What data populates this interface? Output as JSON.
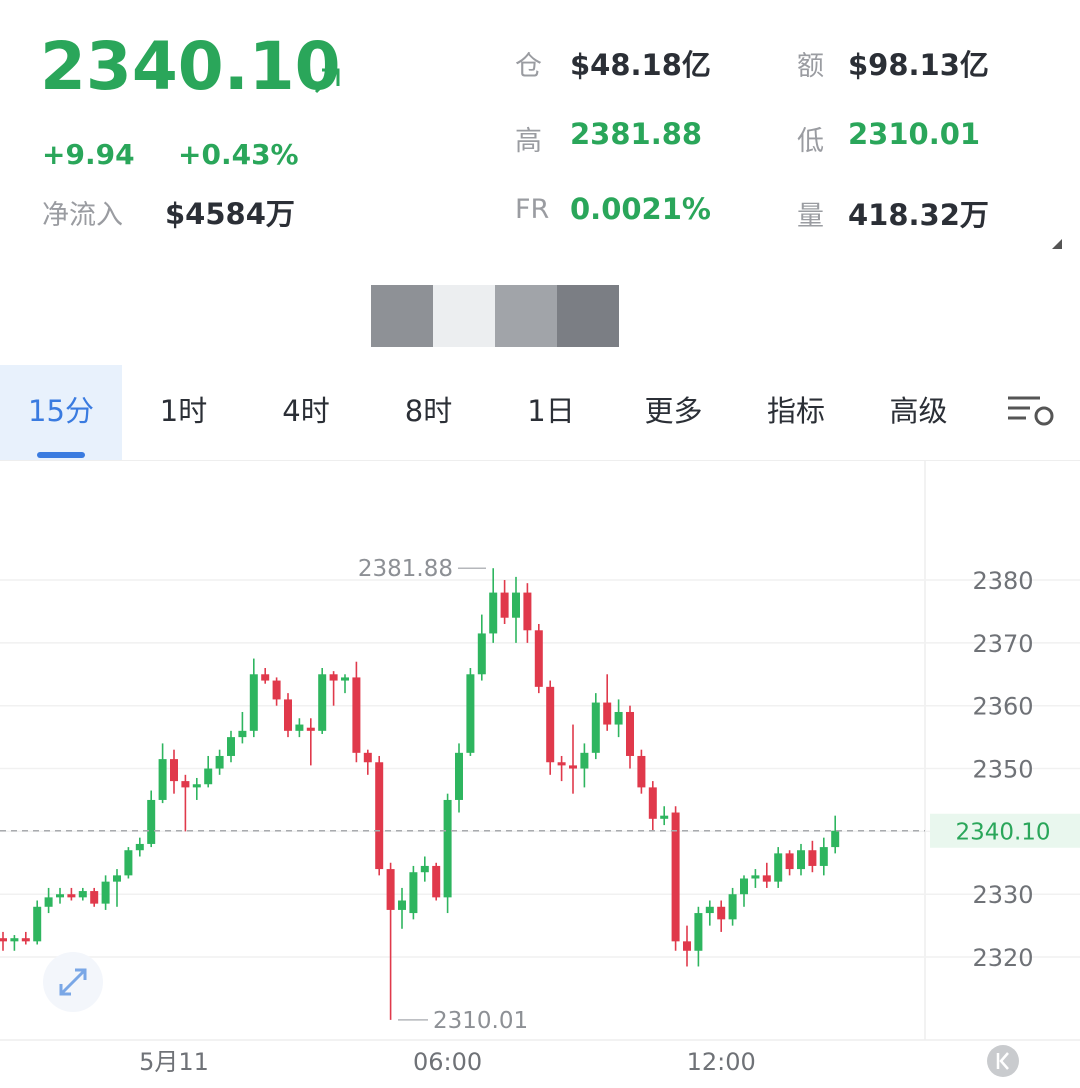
{
  "header": {
    "price": "2340.10",
    "change": "+9.94",
    "change_pct": "+0.43%",
    "inflow_label": "净流入",
    "inflow_value": "$4584万",
    "stats": [
      {
        "label": "仓",
        "value": "$48.18亿"
      },
      {
        "label": "额",
        "value": "$98.13亿"
      },
      {
        "label": "高",
        "value": "2381.88"
      },
      {
        "label": "低",
        "value": "2310.01"
      },
      {
        "label": "FR",
        "value": "0.0021%"
      },
      {
        "label": "量",
        "value": "418.32万"
      }
    ]
  },
  "tabs": [
    "15分",
    "1时",
    "4时",
    "8时",
    "1日",
    "更多",
    "指标",
    "高级"
  ],
  "chart_data": {
    "type": "candlestick",
    "up_color": "#2eb55f",
    "down_color": "#e0394b",
    "grid": true,
    "categories": [
      null,
      null,
      null,
      null,
      null,
      null,
      null,
      null,
      null,
      null,
      null,
      null,
      null,
      null,
      null,
      "5月11",
      null,
      null,
      null,
      null,
      null,
      null,
      null,
      null,
      null,
      null,
      null,
      null,
      null,
      null,
      null,
      null,
      null,
      null,
      null,
      null,
      null,
      null,
      null,
      "06:00",
      null,
      null,
      null,
      null,
      null,
      null,
      null,
      null,
      null,
      null,
      null,
      null,
      null,
      null,
      null,
      null,
      null,
      null,
      null,
      null,
      null,
      null,
      null,
      "12:00",
      null,
      null,
      null,
      null,
      null,
      null,
      null,
      null,
      null,
      null
    ],
    "open": [
      2323,
      2322.5,
      2323,
      2322.5,
      2328,
      2329.5,
      2330,
      2329.5,
      2330.5,
      2328.5,
      2332,
      2333,
      2337,
      2338,
      2345,
      2351.5,
      2348,
      2347,
      2347.5,
      2350,
      2352,
      2355,
      2356,
      2365,
      2364,
      2361,
      2356,
      2356.5,
      2356,
      2365,
      2364,
      2364.5,
      2352.5,
      2351,
      2334,
      2327.5,
      2327,
      2333.5,
      2334.5,
      2329.5,
      2345,
      2352.5,
      2365,
      2371.5,
      2378,
      2374,
      2378,
      2372,
      2363,
      2351,
      2350.5,
      2350,
      2352.5,
      2360.5,
      2357,
      2359,
      2352,
      2347,
      2342,
      2343,
      2322.5,
      2321,
      2327,
      2328,
      2326,
      2330,
      2332.5,
      2333,
      2332,
      2336.5,
      2334,
      2337,
      2334.5,
      2337.5
    ],
    "high": [
      2324,
      2323.5,
      2324,
      2329,
      2331,
      2331,
      2331,
      2331,
      2331,
      2333,
      2334,
      2337.5,
      2339,
      2346.5,
      2354,
      2353,
      2349,
      2348.5,
      2352,
      2353,
      2356,
      2359,
      2367.5,
      2366,
      2364.5,
      2362,
      2358,
      2358,
      2366,
      2365.5,
      2365,
      2367,
      2353,
      2352,
      2335,
      2331,
      2334.5,
      2336,
      2335,
      2346,
      2354,
      2366,
      2374.5,
      2381.88,
      2380,
      2380.5,
      2379.5,
      2373,
      2364,
      2352,
      2357,
      2354,
      2362,
      2365,
      2361,
      2360,
      2353,
      2348,
      2344,
      2344,
      2325,
      2328,
      2329,
      2329,
      2331,
      2333,
      2334,
      2335,
      2337.5,
      2337,
      2338,
      2338.5,
      2339,
      2342.5
    ],
    "low": [
      2321,
      2321,
      2322,
      2322,
      2327,
      2328.5,
      2329,
      2329,
      2328,
      2327.5,
      2328,
      2332.5,
      2336,
      2337.5,
      2344.5,
      2346,
      2340,
      2345,
      2347,
      2349,
      2351,
      2354,
      2355,
      2363.5,
      2360,
      2355,
      2355,
      2350.5,
      2355.5,
      2360,
      2362,
      2351,
      2349,
      2333,
      2310.01,
      2324.5,
      2326,
      2332,
      2329,
      2327,
      2343,
      2352,
      2364,
      2370,
      2373,
      2370,
      2370,
      2362,
      2349,
      2348,
      2346,
      2347,
      2351.5,
      2356,
      2355,
      2350,
      2346,
      2340,
      2341,
      2321,
      2318.5,
      2318.5,
      2325,
      2324,
      2325,
      2328,
      2331,
      2331,
      2331,
      2333,
      2333,
      2333.5,
      2333,
      2336.5
    ],
    "close": [
      2322.5,
      2323,
      2322.5,
      2328,
      2329.5,
      2330,
      2329.5,
      2330.5,
      2328.5,
      2332,
      2333,
      2337,
      2338,
      2345,
      2351.5,
      2348,
      2347,
      2347.5,
      2350,
      2352,
      2355,
      2356,
      2365,
      2364,
      2361,
      2356,
      2357,
      2356,
      2365,
      2364,
      2364.5,
      2352.5,
      2351,
      2334,
      2327.5,
      2329,
      2333.5,
      2334.5,
      2329.5,
      2345,
      2352.5,
      2365,
      2371.5,
      2378,
      2374,
      2378,
      2372,
      2363,
      2351,
      2350.5,
      2350,
      2352.5,
      2360.5,
      2357,
      2359,
      2352,
      2347,
      2342,
      2342.5,
      2322.5,
      2321,
      2327,
      2328,
      2326,
      2330,
      2332.5,
      2333,
      2332,
      2336.5,
      2334,
      2337,
      2334.5,
      2337.5,
      2340.1
    ],
    "ylim": [
      2306.8,
      2399.1
    ],
    "yticks": [
      2320,
      2330,
      2340,
      2350,
      2360,
      2370,
      2380
    ],
    "high_marker": {
      "value": 2381.88,
      "label": "2381.88"
    },
    "low_marker": {
      "value": 2310.01,
      "label": "2310.01"
    },
    "last_price": {
      "value": 2340.1,
      "label": "2340.10"
    }
  }
}
